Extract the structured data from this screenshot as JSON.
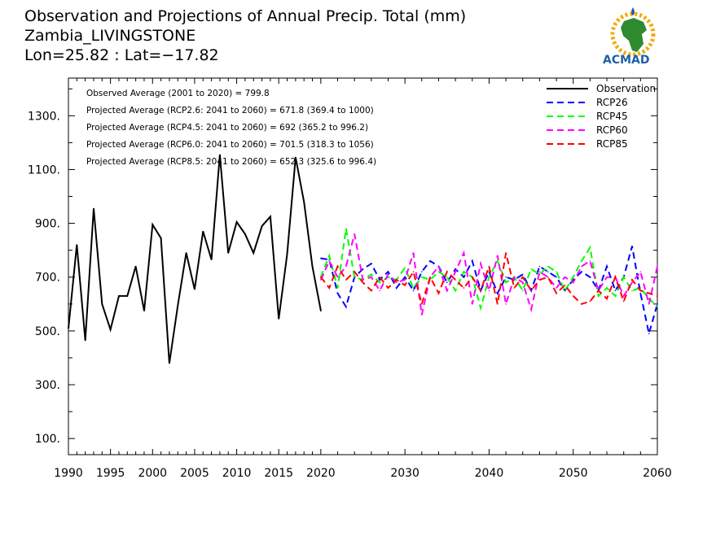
{
  "header": {
    "title_lines": [
      "Observation and Projections of Annual Precip. Total (mm)",
      "Zambia_LIVINGSTONE",
      "Lon=25.82 : Lat=−17.82"
    ]
  },
  "logo": {
    "text": "ACMAD",
    "icon": "africa-map-logo"
  },
  "annotations": [
    "Observed Average (2001 to 2020) = 799.8",
    "Projected Average (RCP2.6: 2041 to 2060) = 671.8 (369.4 to 1000)",
    "Projected Average (RCP4.5: 2041 to 2060) = 692 (365.2 to 996.2)",
    "Projected Average (RCP6.0: 2041 to 2060) = 701.5 (318.3 to 1056)",
    "Projected Average (RCP8.5: 2041 to 2060) = 652.3 (325.6 to 996.4)"
  ],
  "chart_data": {
    "type": "line",
    "title": "Observation and Projections of Annual Precip. Total (mm)",
    "xlim": [
      1990,
      2060
    ],
    "ylim": [
      40,
      1440
    ],
    "x_ticks": [
      {
        "v": 1990,
        "label": "1990"
      },
      {
        "v": 1995,
        "label": "1995"
      },
      {
        "v": 2000,
        "label": "2000"
      },
      {
        "v": 2005,
        "label": "2005"
      },
      {
        "v": 2010,
        "label": "2010"
      },
      {
        "v": 2015,
        "label": "2015"
      },
      {
        "v": 2020,
        "label": "2020"
      },
      {
        "v": 2030,
        "label": "2030"
      },
      {
        "v": 2040,
        "label": "2040"
      },
      {
        "v": 2050,
        "label": "2050"
      },
      {
        "v": 2060,
        "label": "2060"
      }
    ],
    "y_ticks": [
      {
        "v": 100,
        "label": "100."
      },
      {
        "v": 300,
        "label": "300."
      },
      {
        "v": 500,
        "label": "500."
      },
      {
        "v": 700,
        "label": "700."
      },
      {
        "v": 900,
        "label": "900."
      },
      {
        "v": 1100,
        "label": "1100."
      },
      {
        "v": 1300,
        "label": "1300."
      }
    ],
    "legend_position": "top-right",
    "series": [
      {
        "name": "Observation",
        "color": "#000000",
        "dashed": false,
        "x": [
          1990,
          1991,
          1992,
          1993,
          1994,
          1995,
          1996,
          1997,
          1998,
          1999,
          2000,
          2001,
          2002,
          2003,
          2004,
          2005,
          2006,
          2007,
          2008,
          2009,
          2010,
          2011,
          2012,
          2013,
          2014,
          2015,
          2016,
          2017,
          2018,
          2019,
          2020
        ],
        "y": [
          510,
          820,
          465,
          955,
          600,
          505,
          630,
          630,
          740,
          575,
          895,
          845,
          380,
          595,
          790,
          655,
          870,
          765,
          1155,
          790,
          905,
          860,
          790,
          890,
          925,
          545,
          785,
          1145,
          980,
          740,
          575
        ]
      },
      {
        "name": "RCP26",
        "color": "#0000ff",
        "dashed": true,
        "x": [
          2020,
          2021,
          2022,
          2023,
          2024,
          2025,
          2026,
          2027,
          2028,
          2029,
          2030,
          2031,
          2032,
          2033,
          2034,
          2035,
          2036,
          2037,
          2038,
          2039,
          2040,
          2041,
          2042,
          2043,
          2044,
          2045,
          2046,
          2047,
          2048,
          2049,
          2050,
          2051,
          2052,
          2053,
          2054,
          2055,
          2056,
          2057,
          2058,
          2059,
          2060
        ],
        "y": [
          770,
          765,
          640,
          590,
          700,
          730,
          750,
          690,
          720,
          660,
          700,
          650,
          720,
          760,
          740,
          680,
          730,
          700,
          760,
          650,
          720,
          640,
          700,
          690,
          710,
          650,
          740,
          720,
          700,
          650,
          690,
          720,
          700,
          650,
          740,
          650,
          700,
          815,
          640,
          490,
          600
        ]
      },
      {
        "name": "RCP45",
        "color": "#00ff00",
        "dashed": true,
        "x": [
          2020,
          2021,
          2022,
          2023,
          2024,
          2025,
          2026,
          2027,
          2028,
          2029,
          2030,
          2031,
          2032,
          2033,
          2034,
          2035,
          2036,
          2037,
          2038,
          2039,
          2040,
          2041,
          2042,
          2043,
          2044,
          2045,
          2046,
          2047,
          2048,
          2049,
          2050,
          2051,
          2052,
          2053,
          2054,
          2055,
          2056,
          2057,
          2058,
          2059,
          2060
        ],
        "y": [
          700,
          780,
          660,
          880,
          700,
          690,
          710,
          680,
          700,
          690,
          735,
          660,
          700,
          690,
          720,
          700,
          650,
          720,
          700,
          585,
          700,
          760,
          680,
          700,
          650,
          730,
          710,
          740,
          720,
          650,
          700,
          760,
          810,
          630,
          660,
          630,
          700,
          650,
          660,
          620,
          590
        ]
      },
      {
        "name": "RCP60",
        "color": "#ff00ff",
        "dashed": true,
        "x": [
          2020,
          2021,
          2022,
          2023,
          2024,
          2025,
          2026,
          2027,
          2028,
          2029,
          2030,
          2031,
          2032,
          2033,
          2034,
          2035,
          2036,
          2037,
          2038,
          2039,
          2040,
          2041,
          2042,
          2043,
          2044,
          2045,
          2046,
          2047,
          2048,
          2049,
          2050,
          2051,
          2052,
          2053,
          2054,
          2055,
          2056,
          2057,
          2058,
          2059,
          2060
        ],
        "y": [
          690,
          760,
          700,
          740,
          860,
          690,
          700,
          650,
          710,
          680,
          690,
          790,
          560,
          700,
          740,
          650,
          720,
          790,
          600,
          750,
          650,
          780,
          600,
          700,
          680,
          580,
          720,
          700,
          660,
          700,
          680,
          740,
          760,
          650,
          700,
          700,
          630,
          680,
          720,
          600,
          740
        ]
      },
      {
        "name": "RCP85",
        "color": "#ff0000",
        "dashed": true,
        "x": [
          2020,
          2021,
          2022,
          2023,
          2024,
          2025,
          2026,
          2027,
          2028,
          2029,
          2030,
          2031,
          2032,
          2033,
          2034,
          2035,
          2036,
          2037,
          2038,
          2039,
          2040,
          2041,
          2042,
          2043,
          2044,
          2045,
          2046,
          2047,
          2048,
          2049,
          2050,
          2051,
          2052,
          2053,
          2054,
          2055,
          2056,
          2057,
          2058,
          2059,
          2060
        ],
        "y": [
          700,
          660,
          740,
          690,
          720,
          680,
          650,
          700,
          660,
          690,
          670,
          720,
          600,
          700,
          640,
          720,
          690,
          660,
          700,
          650,
          740,
          600,
          790,
          660,
          700,
          650,
          690,
          700,
          640,
          670,
          630,
          600,
          610,
          650,
          620,
          700,
          610,
          690,
          650,
          640,
          630
        ]
      }
    ]
  }
}
